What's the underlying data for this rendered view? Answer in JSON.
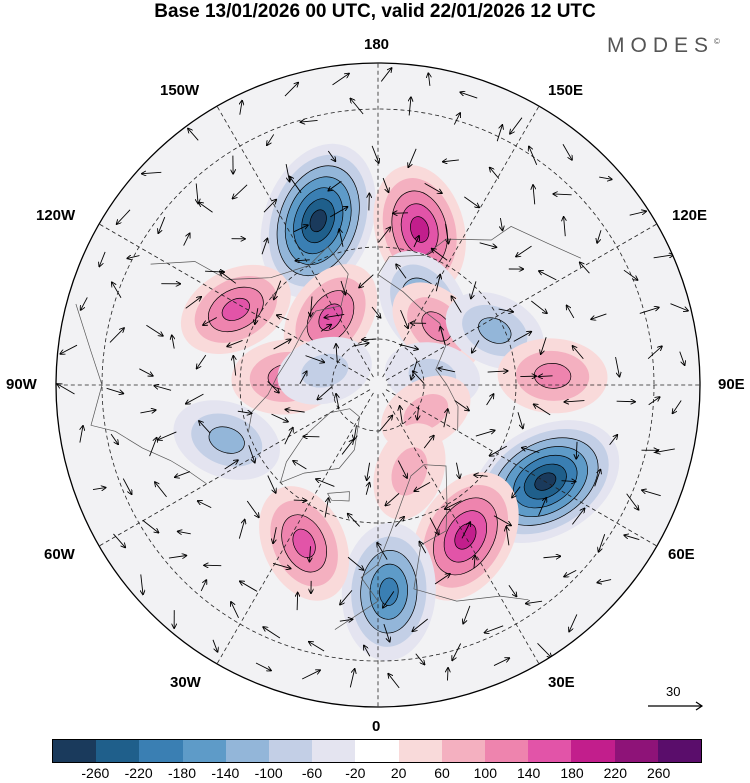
{
  "title": "Base 13/01/2026 00 UTC, valid 22/01/2026 12 UTC",
  "brand": "MODES",
  "brand_mark": "©",
  "longitude_labels": {
    "top": "180",
    "bottom": "0",
    "left": "90W",
    "right": "90E",
    "upper_left_1": "150W",
    "upper_left_2": "120W",
    "upper_right_1": "150E",
    "upper_right_2": "120E",
    "lower_left_1": "60W",
    "lower_left_2": "30W",
    "lower_right_1": "60E",
    "lower_right_2": "30E"
  },
  "reference_vector": {
    "label": "30"
  },
  "colorbar": {
    "colors": [
      "#1a3a5c",
      "#1f5f8b",
      "#3a7fb3",
      "#5e9bc8",
      "#93b6d9",
      "#c3cfe6",
      "#e4e4f0",
      "#ffffff",
      "#f9dada",
      "#f4b0c0",
      "#ee84ae",
      "#e254a8",
      "#c21e8c",
      "#8e1378",
      "#5a0d6b"
    ],
    "labels": [
      "-260",
      "-220",
      "-180",
      "-140",
      "-100",
      "-60",
      "-20",
      "20",
      "60",
      "100",
      "140",
      "180",
      "220",
      "260"
    ]
  },
  "anomaly_centers": [
    {
      "lon": -160,
      "lat": 52,
      "value": -240
    },
    {
      "lon": 165,
      "lat": 55,
      "value": 160
    },
    {
      "lon": 150,
      "lat": 70,
      "value": -120
    },
    {
      "lon": 135,
      "lat": 72,
      "value": 80
    },
    {
      "lon": 115,
      "lat": 62,
      "value": -80
    },
    {
      "lon": -145,
      "lat": 72,
      "value": 120
    },
    {
      "lon": -118,
      "lat": 55,
      "value": 120
    },
    {
      "lon": 93,
      "lat": 52,
      "value": 100
    },
    {
      "lon": 60,
      "lat": 48,
      "value": -240
    },
    {
      "lon": 30,
      "lat": 52,
      "value": 180
    },
    {
      "lon": 3,
      "lat": 45,
      "value": -180
    },
    {
      "lon": -25,
      "lat": 52,
      "value": 130
    },
    {
      "lon": -70,
      "lat": 55,
      "value": -100
    },
    {
      "lon": -95,
      "lat": 70,
      "value": 100
    },
    {
      "lon": -105,
      "lat": 78,
      "value": -60
    },
    {
      "lon": 100,
      "lat": 78,
      "value": -60
    },
    {
      "lon": 60,
      "lat": 78,
      "value": 60
    },
    {
      "lon": 20,
      "lat": 70,
      "value": 70
    }
  ]
}
